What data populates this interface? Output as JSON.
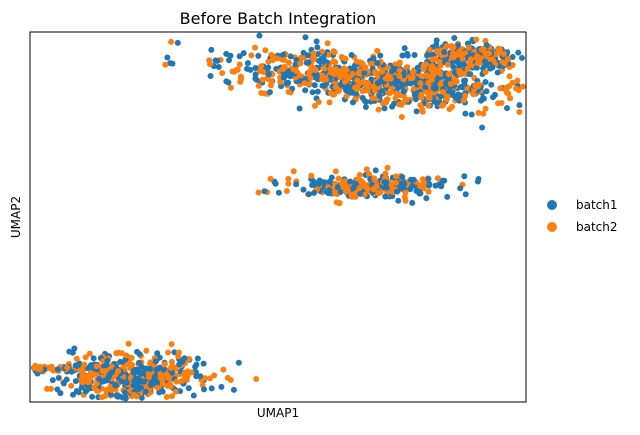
{
  "chart_data": {
    "type": "scatter",
    "title": "Before Batch Integration",
    "xlabel": "UMAP1",
    "ylabel": "UMAP2",
    "xticks": [],
    "yticks": [],
    "grid": false,
    "legend_position": "right",
    "series": [
      {
        "name": "batch1",
        "color": "#1f77b4"
      },
      {
        "name": "batch2",
        "color": "#ff7f0e"
      }
    ],
    "clusters": [
      {
        "label": "upper-right cluster",
        "approximate_center": [
          12.8,
          8.9
        ],
        "spread": [
          2.4,
          0.55
        ],
        "tilt": -0.12,
        "points_per_batch": 430
      },
      {
        "label": "upper-right tail",
        "approximate_center": [
          15.7,
          10.0
        ],
        "spread": [
          0.8,
          0.28
        ],
        "tilt": -0.05,
        "points_per_batch": 140
      },
      {
        "label": "middle cluster",
        "approximate_center": [
          12.6,
          4.1
        ],
        "spread": [
          1.2,
          0.28
        ],
        "tilt": 0.0,
        "points_per_batch": 140
      },
      {
        "label": "lower-left cluster",
        "approximate_center": [
          4.8,
          -4.6
        ],
        "spread": [
          1.35,
          0.55
        ],
        "tilt": 0.0,
        "points_per_batch": 240
      },
      {
        "label": "far-left strand",
        "approximate_center": [
          2.0,
          -4.2
        ],
        "spread": [
          0.7,
          0.09
        ],
        "tilt": 0.0,
        "points_per_batch": 35
      }
    ],
    "xlim": [
      1.5,
      17.5
    ],
    "ylim": [
      -5.7,
      11.1
    ]
  }
}
